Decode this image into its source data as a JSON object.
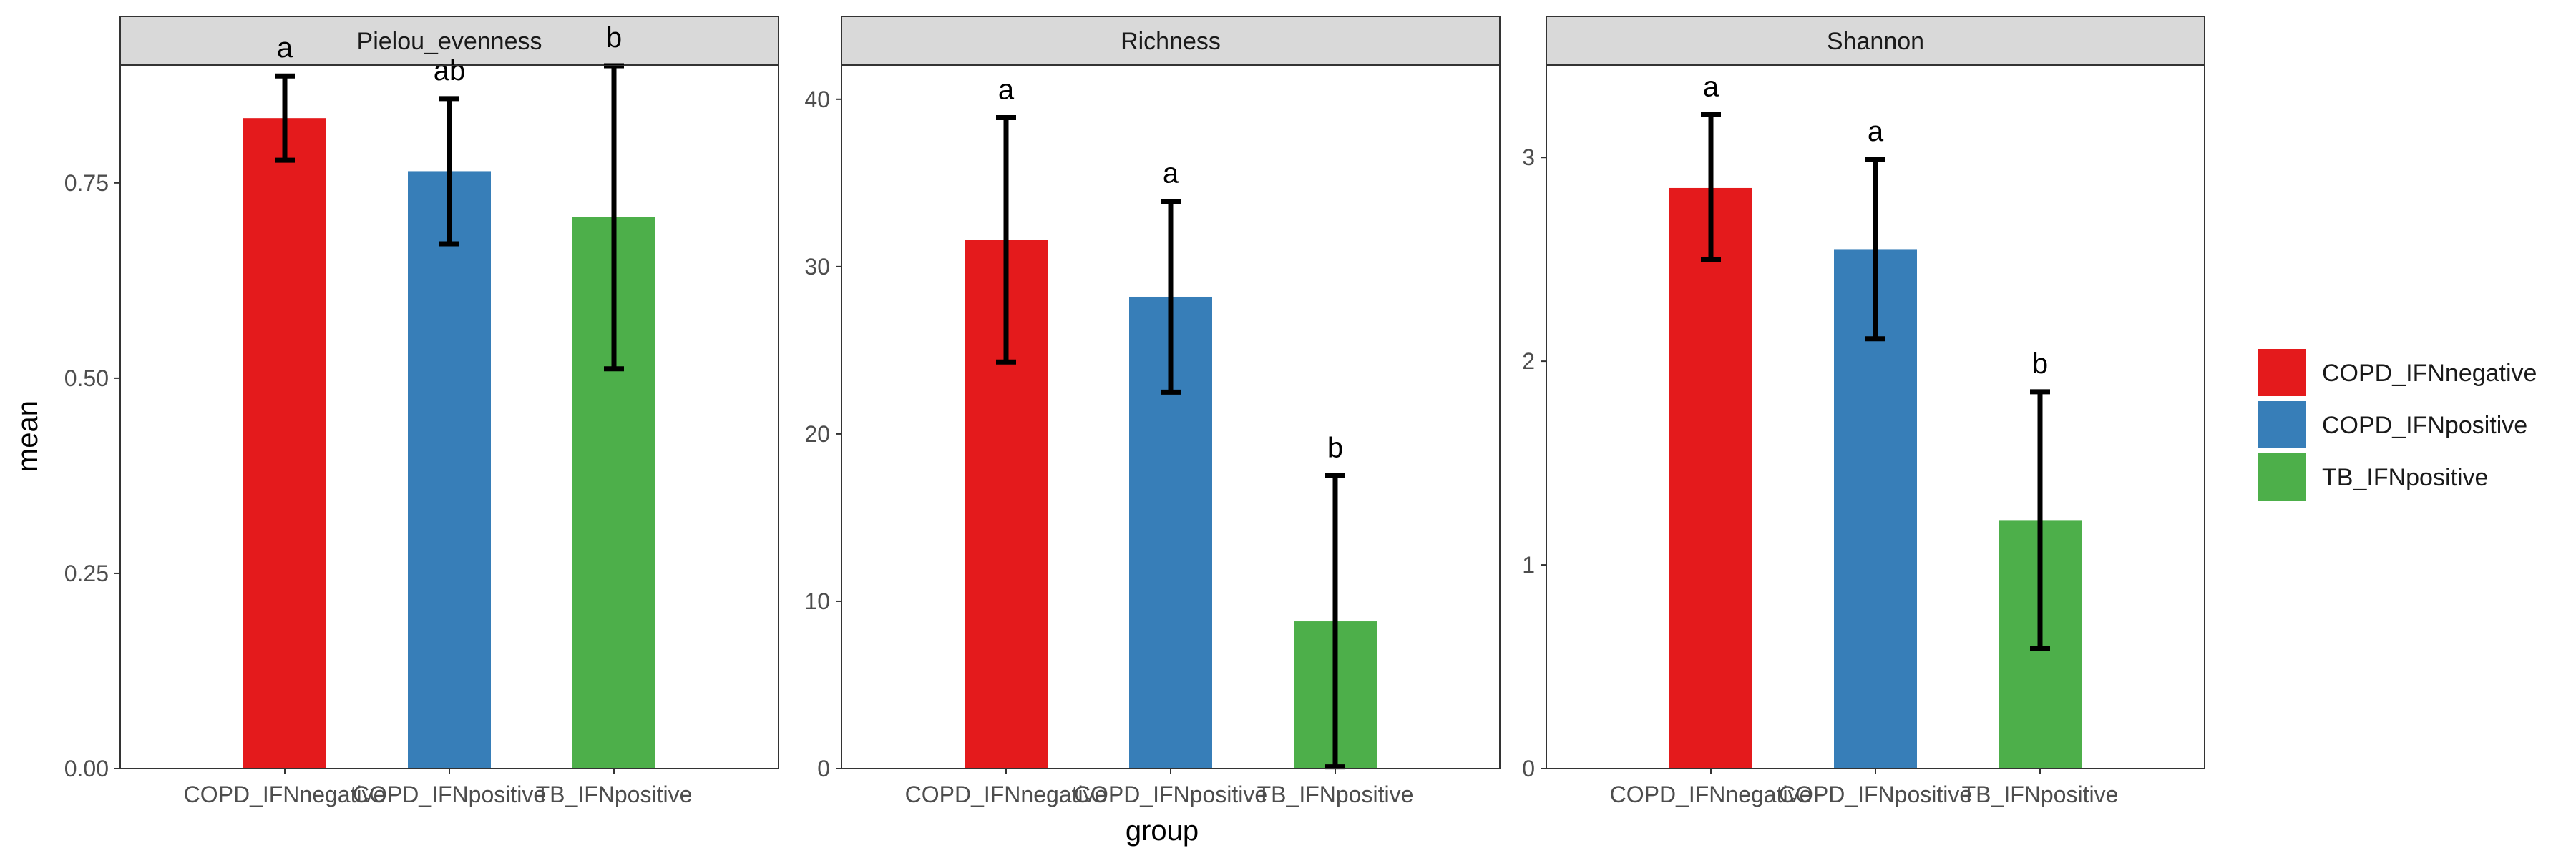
{
  "chart_data": {
    "type": "bar",
    "xlabel": "group",
    "ylabel": "mean",
    "categories": [
      "COPD_IFNnegative",
      "COPD_IFNpositive",
      "TB_IFNpositive"
    ],
    "colors": {
      "COPD_IFNnegative": "#E41A1C",
      "COPD_IFNpositive": "#377EB8",
      "TB_IFNpositive": "#4DAF4A"
    },
    "legend": {
      "position": "right",
      "entries": [
        "COPD_IFNnegative",
        "COPD_IFNpositive",
        "TB_IFNpositive"
      ]
    },
    "grid": false,
    "panels": [
      {
        "title": "Pielou_evenness",
        "ylim": [
          0,
          0.9
        ],
        "yticks": [
          0,
          0.25,
          0.5,
          0.75
        ],
        "ytick_labels": [
          "0.00",
          "0.25",
          "0.50",
          "0.75"
        ],
        "values": [
          0.833,
          0.765,
          0.706
        ],
        "error_low": [
          0.779,
          0.672,
          0.512
        ],
        "error_high": [
          0.887,
          0.858,
          0.9
        ],
        "sig_letters": [
          "a",
          "ab",
          "b"
        ]
      },
      {
        "title": "Richness",
        "ylim": [
          0,
          42
        ],
        "yticks": [
          0,
          10,
          20,
          30,
          40
        ],
        "ytick_labels": [
          "0",
          "10",
          "20",
          "30",
          "40"
        ],
        "values": [
          31.6,
          28.2,
          8.8
        ],
        "error_low": [
          24.3,
          22.5,
          0.1
        ],
        "error_high": [
          38.9,
          33.9,
          17.5
        ],
        "sig_letters": [
          "a",
          "a",
          "b"
        ]
      },
      {
        "title": "Shannon",
        "ylim": [
          0,
          3.45
        ],
        "yticks": [
          0,
          1,
          2,
          3
        ],
        "ytick_labels": [
          "0",
          "1",
          "2",
          "3"
        ],
        "values": [
          2.85,
          2.55,
          1.22
        ],
        "error_low": [
          2.5,
          2.11,
          0.59
        ],
        "error_high": [
          3.21,
          2.99,
          1.85
        ],
        "sig_letters": [
          "a",
          "a",
          "b"
        ]
      }
    ]
  }
}
